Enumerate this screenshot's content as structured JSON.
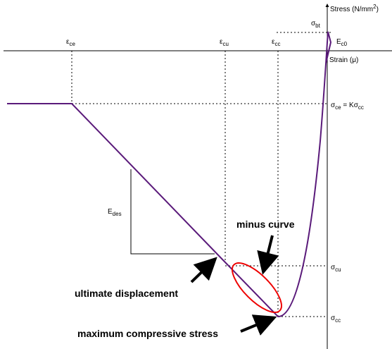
{
  "axes": {
    "y_label": {
      "parts": [
        "Stress (N/mm",
        "2",
        ")"
      ]
    },
    "x_label": {
      "parts": [
        "Strain (μ)"
      ]
    }
  },
  "strain_labels": {
    "ce": {
      "parts": [
        "ε",
        "ce"
      ]
    },
    "cu": {
      "parts": [
        "ε",
        "cu"
      ]
    },
    "cc": {
      "parts": [
        "ε",
        "cc"
      ]
    }
  },
  "stress_labels": {
    "bt": {
      "parts": [
        "σ",
        "bt"
      ]
    },
    "ce": {
      "parts": [
        "σ",
        "ce",
        " = Kσ",
        "cc"
      ]
    },
    "cu": {
      "parts": [
        "σ",
        "cu"
      ]
    },
    "cc": {
      "parts": [
        "σ",
        "cc"
      ]
    }
  },
  "moduli": {
    "initial": {
      "parts": [
        "E",
        "c0"
      ]
    },
    "descending": {
      "parts": [
        "E",
        "des"
      ]
    }
  },
  "annotations": {
    "minus_curve": "minus curve",
    "ultimate_displacement": "ultimate displacement",
    "maximum_compressive_stress": "maximum compressive stress"
  }
}
